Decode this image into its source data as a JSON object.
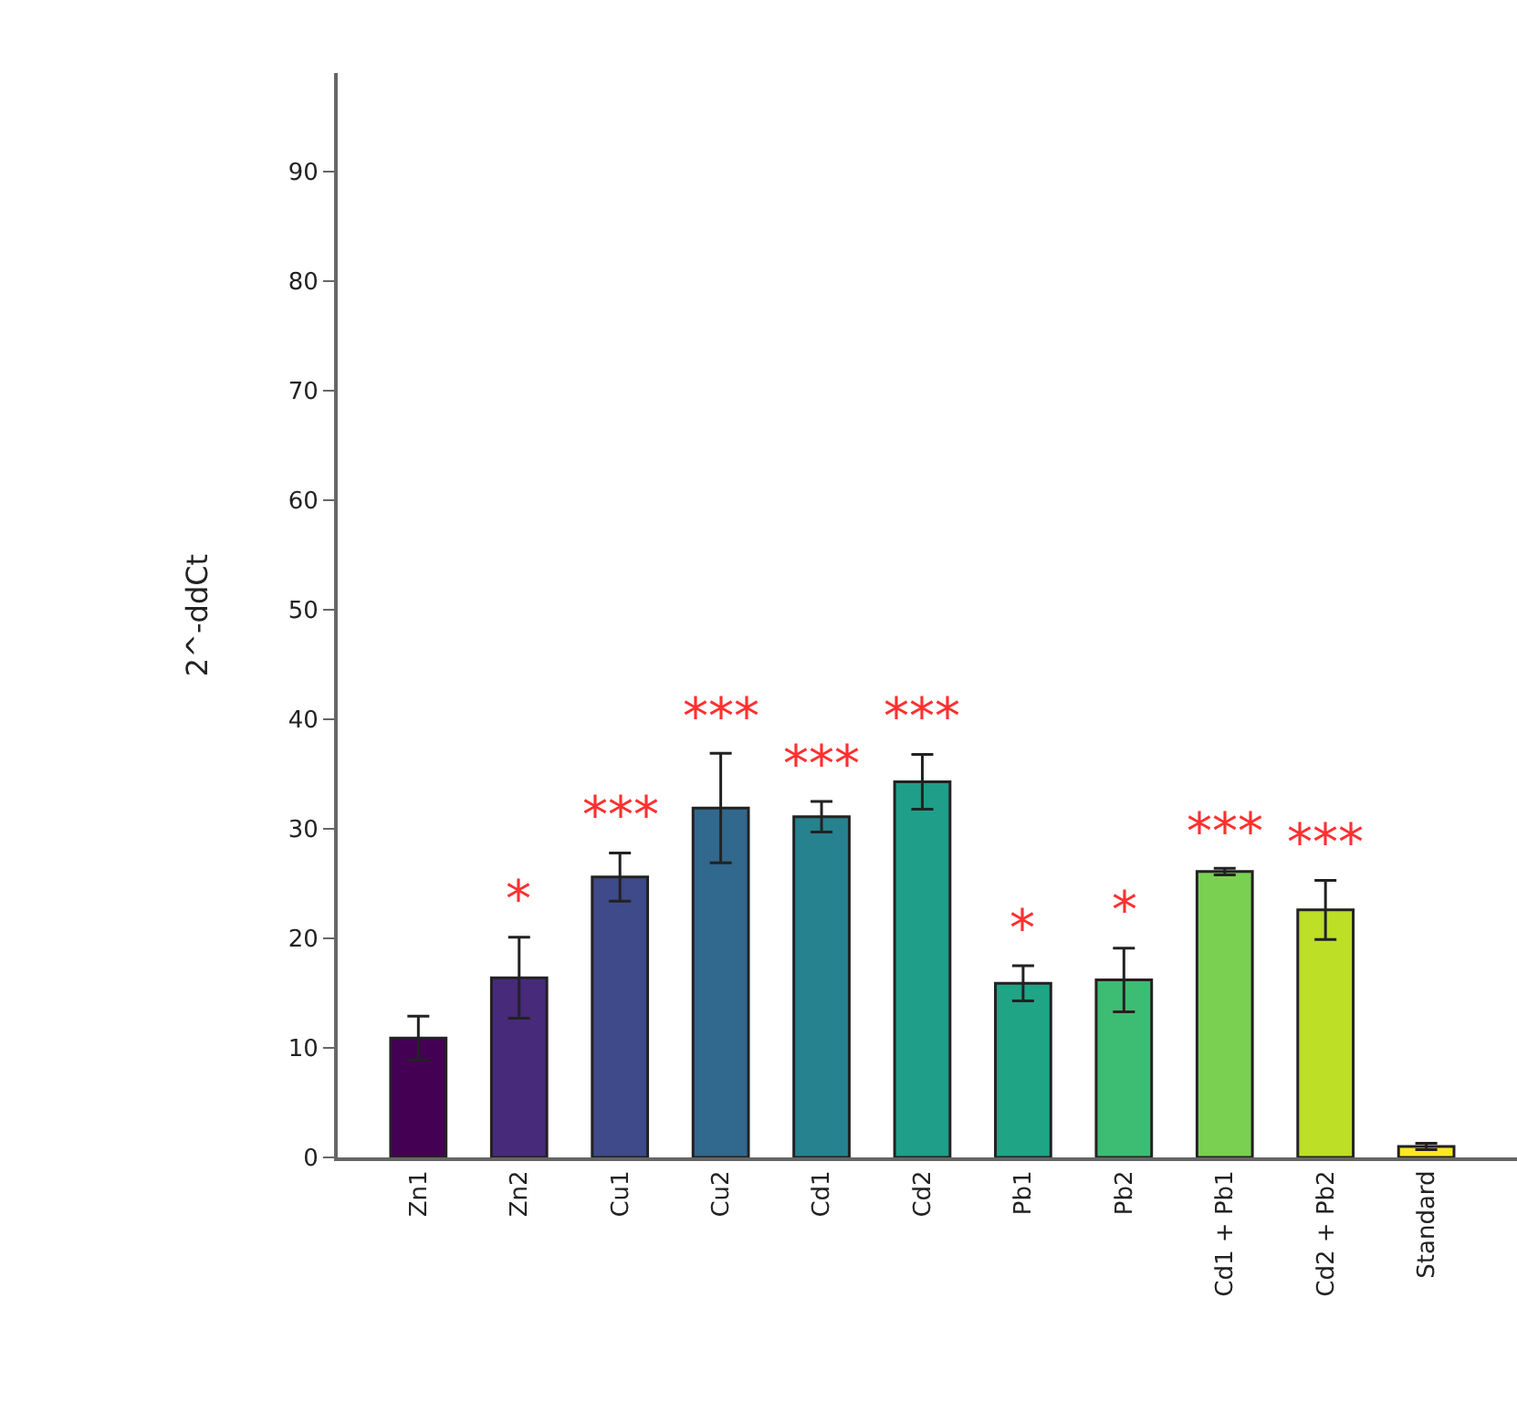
{
  "chart_data": {
    "type": "bar",
    "ylabel": "2^-ddCt",
    "categories": [
      "Zn1",
      "Zn2",
      "Cu1",
      "Cu2",
      "Cd1",
      "Cd2",
      "Pb1",
      "Pb2",
      "Cd1 + Pb1",
      "Cd2 + Pb2",
      "Standard"
    ],
    "values": [
      10.9,
      16.4,
      25.6,
      31.9,
      31.1,
      34.3,
      15.9,
      16.2,
      26.1,
      22.6,
      1.0
    ],
    "errors": [
      2.0,
      3.7,
      2.2,
      5.0,
      1.4,
      2.5,
      1.6,
      2.9,
      0.3,
      2.7,
      0.3
    ],
    "colors": [
      "#440154",
      "#472a7a",
      "#3e4a89",
      "#31688e",
      "#26828e",
      "#1f9e89",
      "#20a486",
      "#3dbc74",
      "#7ad151",
      "#bddf26",
      "#fde725"
    ],
    "ylim": [
      0,
      99
    ],
    "yticks": [
      0,
      10,
      20,
      30,
      40,
      50,
      60,
      70,
      80,
      90
    ],
    "value_labels": [
      null,
      "*",
      "***",
      "***",
      "***",
      "***",
      "*",
      "*",
      "***",
      "***",
      null
    ]
  }
}
